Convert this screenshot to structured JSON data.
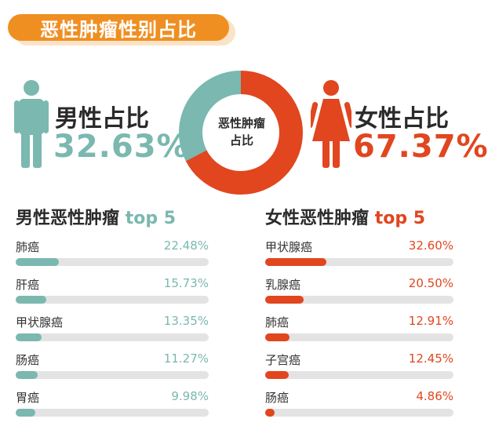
{
  "title": "恶性肿瘤性别占比",
  "colors": {
    "male": "#7ab8b0",
    "female": "#e1461f",
    "title_bg": "#ef8f22"
  },
  "male": {
    "label": "男性占比",
    "value": "32.63%",
    "icon": "male-person-icon"
  },
  "female": {
    "label": "女性占比",
    "value": "67.37%",
    "icon": "female-person-icon"
  },
  "donut_center": [
    "恶性肿瘤",
    "占比"
  ],
  "male_list": {
    "title": "男性恶性肿瘤",
    "accent": "top 5"
  },
  "female_list": {
    "title": "女性恶性肿瘤",
    "accent": "top 5"
  },
  "chart_data": [
    {
      "type": "pie",
      "title": "",
      "categories": [
        "男性",
        "女性"
      ],
      "values": [
        32.63,
        67.37
      ],
      "hole": true,
      "center_text": "恶性肿瘤占比"
    },
    {
      "type": "bar",
      "title": "男性恶性肿瘤 top 5",
      "orientation": "horizontal",
      "categories": [
        "肺癌",
        "肝癌",
        "甲状腺癌",
        "肠癌",
        "胃癌"
      ],
      "values": [
        22.48,
        15.73,
        13.35,
        11.27,
        9.98
      ],
      "labels": [
        "22.48%",
        "15.73%",
        "13.35%",
        "11.27%",
        "9.98%"
      ],
      "xlim": [
        0,
        100
      ]
    },
    {
      "type": "bar",
      "title": "女性恶性肿瘤 top 5",
      "orientation": "horizontal",
      "categories": [
        "甲状腺癌",
        "乳腺癌",
        "肺癌",
        "子宫癌",
        "肠癌"
      ],
      "values": [
        32.6,
        20.5,
        12.91,
        12.45,
        4.86
      ],
      "labels": [
        "32.60%",
        "20.50%",
        "12.91%",
        "12.45%",
        "4.86%"
      ],
      "xlim": [
        0,
        100
      ]
    }
  ]
}
